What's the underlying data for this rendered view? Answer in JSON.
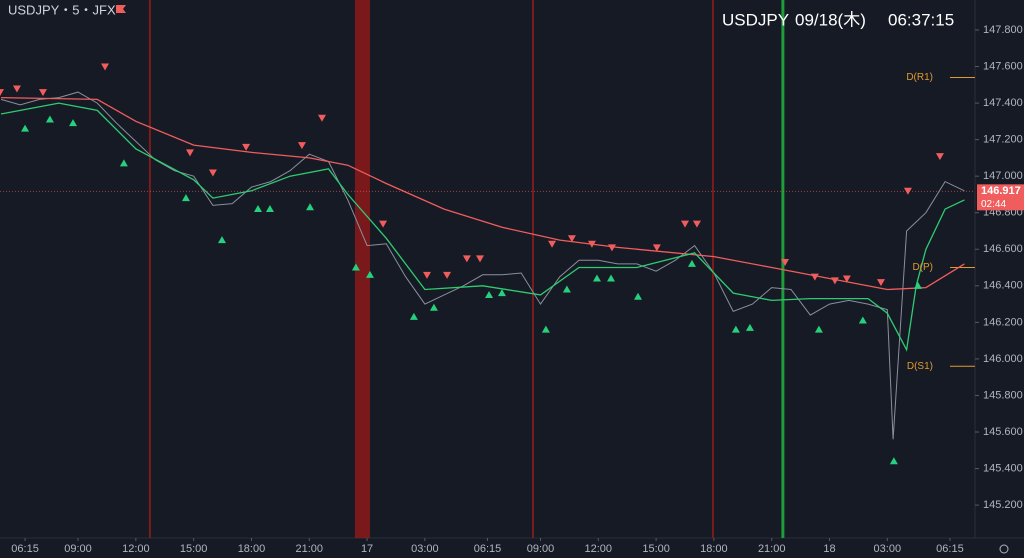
{
  "chart_data": {
    "type": "line",
    "symbol": "USDJPY・5・JFX",
    "header": {
      "symbol": "USDJPY",
      "date": "09/18(木)",
      "time": "06:37:15"
    },
    "xlim": [
      4.95,
      55.55
    ],
    "ylim": [
      145.02,
      147.964
    ],
    "xticks": [
      {
        "value": 6.25,
        "label": "06:15"
      },
      {
        "value": 9,
        "label": "09:00"
      },
      {
        "value": 12,
        "label": "12:00"
      },
      {
        "value": 15,
        "label": "15:00"
      },
      {
        "value": 18,
        "label": "18:00"
      },
      {
        "value": 21,
        "label": "21:00"
      },
      {
        "value": 24,
        "label": "17"
      },
      {
        "value": 27,
        "label": "03:00"
      },
      {
        "value": 30.25,
        "label": "06:15"
      },
      {
        "value": 33,
        "label": "09:00"
      },
      {
        "value": 36,
        "label": "12:00"
      },
      {
        "value": 39,
        "label": "15:00"
      },
      {
        "value": 42,
        "label": "18:00"
      },
      {
        "value": 45,
        "label": "21:00"
      },
      {
        "value": 48,
        "label": "18"
      },
      {
        "value": 51,
        "label": "03:00"
      },
      {
        "value": 54.25,
        "label": "06:15"
      }
    ],
    "yticks": [
      {
        "value": 147.8,
        "label": "147.800"
      },
      {
        "value": 147.6,
        "label": "147.600"
      },
      {
        "value": 147.4,
        "label": "147.400"
      },
      {
        "value": 147.2,
        "label": "147.200"
      },
      {
        "value": 147.0,
        "label": "147.000"
      },
      {
        "value": 146.8,
        "label": "146.800"
      },
      {
        "value": 146.6,
        "label": "146.600"
      },
      {
        "value": 146.4,
        "label": "146.400"
      },
      {
        "value": 146.2,
        "label": "146.200"
      },
      {
        "value": 146.0,
        "label": "146.000"
      },
      {
        "value": 145.8,
        "label": "145.800"
      },
      {
        "value": 145.6,
        "label": "145.600"
      },
      {
        "value": 145.4,
        "label": "145.400"
      },
      {
        "value": 145.2,
        "label": "145.200"
      }
    ],
    "series": [
      {
        "color": "#8a8f9c",
        "x": [
          5,
          6,
          7,
          8,
          9,
          10,
          11,
          12,
          13,
          14,
          15,
          16,
          17,
          18,
          19,
          20,
          21,
          22,
          23,
          24,
          25,
          26,
          27,
          28,
          29,
          30,
          31,
          32,
          33,
          34,
          35,
          36,
          37,
          38,
          39,
          40,
          41,
          42,
          43,
          44,
          45,
          46,
          47,
          48,
          49,
          50,
          51,
          51.3,
          52,
          53,
          54,
          55
        ],
        "values": [
          147.42,
          147.39,
          147.42,
          147.43,
          147.46,
          147.4,
          147.29,
          147.19,
          147.09,
          147.03,
          147.0,
          146.84,
          146.85,
          146.94,
          146.97,
          147.03,
          147.12,
          147.08,
          146.87,
          146.62,
          146.63,
          146.45,
          146.3,
          146.35,
          146.4,
          146.46,
          146.46,
          146.47,
          146.3,
          146.45,
          146.54,
          146.54,
          146.52,
          146.52,
          146.48,
          146.54,
          146.62,
          146.47,
          146.26,
          146.3,
          146.39,
          146.38,
          146.24,
          146.3,
          146.32,
          146.3,
          146.27,
          145.56,
          146.7,
          146.8,
          146.97,
          146.92
        ]
      },
      {
        "color": "#f05d5d",
        "x": [
          5,
          10,
          12,
          15,
          18,
          21,
          23,
          25,
          28,
          31,
          34,
          37,
          42,
          45,
          48,
          51,
          53,
          55
        ],
        "values": [
          147.43,
          147.42,
          147.3,
          147.17,
          147.13,
          147.1,
          147.06,
          146.96,
          146.82,
          146.72,
          146.65,
          146.61,
          146.56,
          146.5,
          146.44,
          146.38,
          146.39,
          146.52
        ]
      },
      {
        "color": "#2ecc71",
        "x": [
          5,
          8,
          10,
          12,
          15,
          16,
          18,
          20,
          22,
          23,
          25,
          27,
          30,
          33,
          35,
          38,
          41,
          43,
          45,
          47,
          50,
          51,
          52,
          52.5,
          53,
          54,
          55
        ],
        "values": [
          147.34,
          147.4,
          147.36,
          147.15,
          146.98,
          146.88,
          146.92,
          147.0,
          147.04,
          146.9,
          146.66,
          146.38,
          146.4,
          146.35,
          146.5,
          146.5,
          146.58,
          146.36,
          146.32,
          146.33,
          146.33,
          146.25,
          146.05,
          146.4,
          146.6,
          146.82,
          146.87
        ]
      }
    ],
    "sell_signals": {
      "color": "#f05d5d",
      "x": [
        4.95,
        5.83,
        7.18,
        10.4,
        14.81,
        16.0,
        17.72,
        20.62,
        21.66,
        24.83,
        27.11,
        28.15,
        29.18,
        29.86,
        33.6,
        34.63,
        35.67,
        36.71,
        39.04,
        40.5,
        41.12,
        45.69,
        47.24,
        48.28,
        48.9,
        50.67,
        52.07,
        53.73
      ],
      "values": [
        147.46,
        147.48,
        147.46,
        147.6,
        147.13,
        147.02,
        147.16,
        147.17,
        147.32,
        146.74,
        146.46,
        146.46,
        146.55,
        146.55,
        146.63,
        146.66,
        146.63,
        146.61,
        146.61,
        146.74,
        146.74,
        146.53,
        146.45,
        146.43,
        146.44,
        146.42,
        146.92,
        147.11
      ]
    },
    "buy_signals": {
      "color": "#26d07c",
      "x": [
        6.25,
        7.54,
        8.74,
        11.38,
        14.6,
        16.47,
        18.34,
        18.96,
        21.04,
        23.42,
        24.15,
        26.43,
        27.47,
        30.33,
        31.0,
        33.28,
        34.37,
        35.93,
        36.66,
        38.06,
        40.86,
        43.14,
        43.87,
        47.45,
        49.73,
        51.34,
        52.59
      ],
      "values": [
        147.26,
        147.31,
        147.29,
        147.07,
        146.88,
        146.65,
        146.82,
        146.82,
        146.83,
        146.5,
        146.46,
        146.23,
        146.28,
        146.35,
        146.36,
        146.16,
        146.38,
        146.44,
        146.44,
        146.34,
        146.52,
        146.16,
        146.17,
        146.16,
        146.21,
        145.44,
        146.4
      ]
    },
    "event_lines": [
      {
        "x": 12.73,
        "color": "#7a1c1c"
      },
      {
        "x": 32.61,
        "color": "#7a1c1c"
      },
      {
        "x": 41.95,
        "color": "#7a1c1c"
      },
      {
        "x": 45.58,
        "color": "#1e9e3a"
      }
    ],
    "event_band": {
      "x": [
        23.37,
        24.15
      ],
      "color": "#8b1a1a"
    },
    "pivots": [
      {
        "label": "D(R1)",
        "value": 147.54
      },
      {
        "label": "D(P)",
        "value": 146.5
      },
      {
        "label": "D(S1)",
        "value": 145.96
      }
    ],
    "pivot_color": "#e09a2f",
    "last_price": {
      "value": 146.917,
      "label": "146.917",
      "countdown": "02:44",
      "color": "#f05d5d"
    }
  }
}
